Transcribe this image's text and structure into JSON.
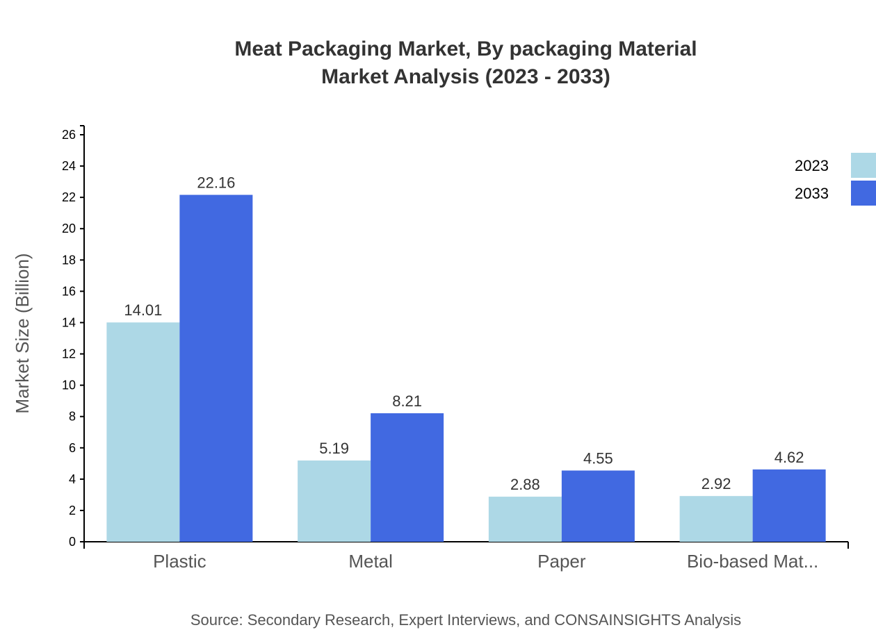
{
  "chart_data": {
    "type": "bar",
    "title": [
      "Meat Packaging Market, By packaging Material",
      "Market Analysis (2023 - 2033)"
    ],
    "ylabel": "Market Size (Billion)",
    "xlabel": "",
    "categories": [
      "Plastic",
      "Metal",
      "Paper",
      "Bio-based Mat..."
    ],
    "series": [
      {
        "name": "2023",
        "color": "#add8e6",
        "values": [
          14.01,
          5.19,
          2.88,
          2.92
        ]
      },
      {
        "name": "2033",
        "color": "#4169e1",
        "values": [
          22.16,
          8.21,
          4.55,
          4.62
        ]
      }
    ],
    "ylim": [
      0,
      26.5
    ],
    "yticks": [
      0,
      2,
      4,
      6,
      8,
      10,
      12,
      14,
      16,
      18,
      20,
      22,
      24,
      26
    ],
    "grid": false,
    "legend": "top-right",
    "source": "Source: Secondary Research, Expert Interviews, and CONSAINSIGHTS Analysis"
  }
}
